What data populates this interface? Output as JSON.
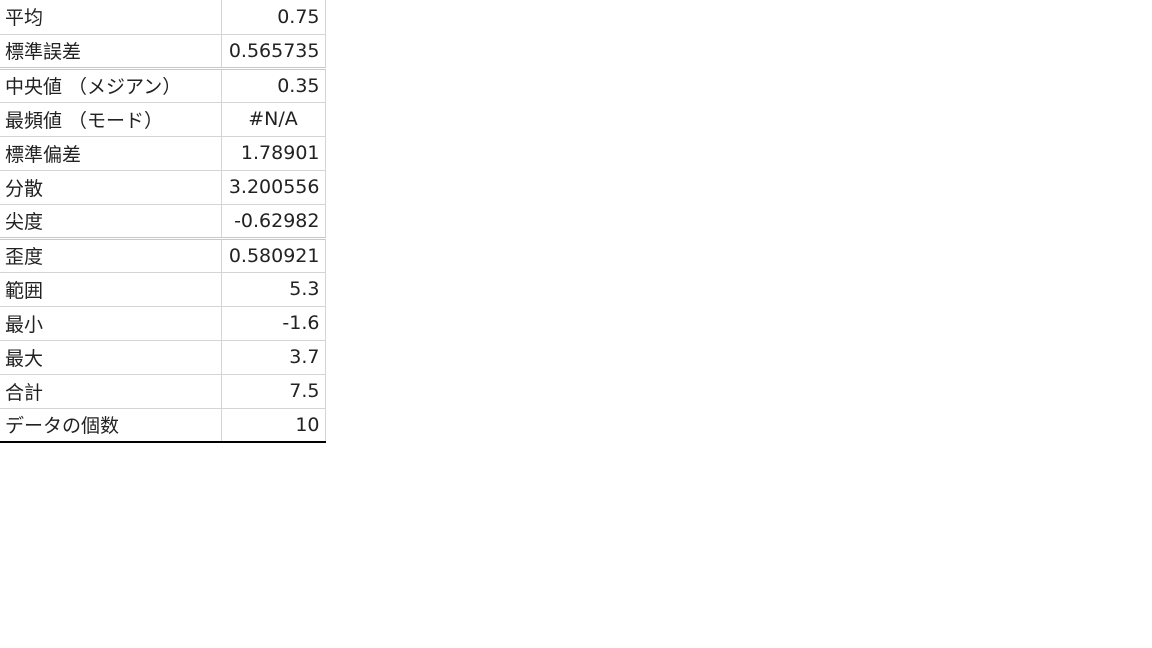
{
  "rows": [
    {
      "label": "平均",
      "value": "0.75"
    },
    {
      "label": "標準誤差",
      "value": "0.565735"
    },
    {
      "label": "中央値 （メジアン）",
      "value": "0.35"
    },
    {
      "label": "最頻値 （モード）",
      "value": "#N/A"
    },
    {
      "label": "標準偏差",
      "value": "1.78901"
    },
    {
      "label": "分散",
      "value": "3.200556"
    },
    {
      "label": "尖度",
      "value": "-0.62982"
    },
    {
      "label": "歪度",
      "value": "0.580921"
    },
    {
      "label": "範囲",
      "value": "5.3"
    },
    {
      "label": "最小",
      "value": "-1.6"
    },
    {
      "label": "最大",
      "value": "3.7"
    },
    {
      "label": "合計",
      "value": "7.5"
    },
    {
      "label": "データの個数",
      "value": "10"
    }
  ]
}
